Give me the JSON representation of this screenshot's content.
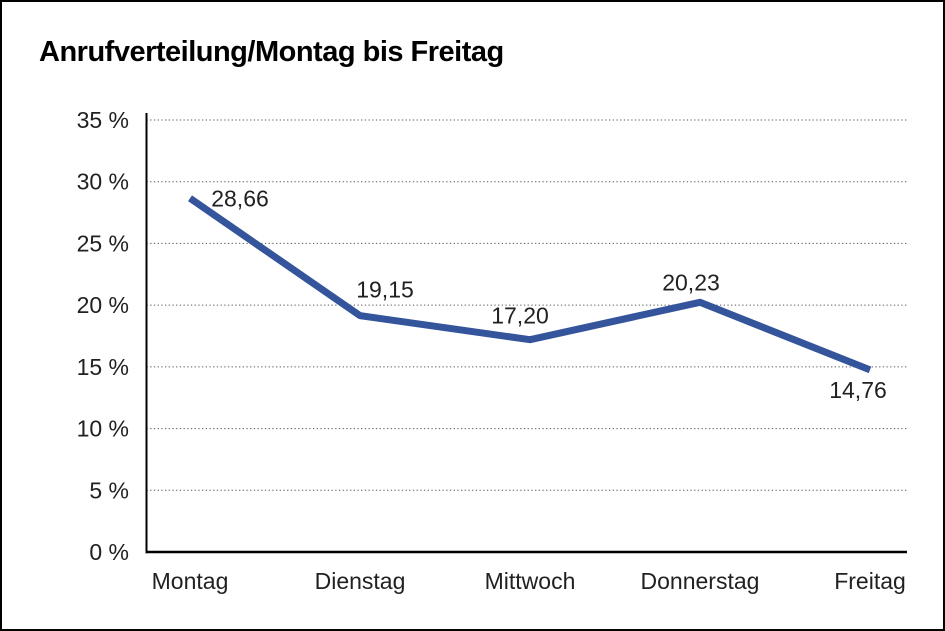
{
  "page": {
    "background": "#ffffff",
    "border_color": "#000000"
  },
  "chart_data": {
    "type": "line",
    "title": "Anrufverteilung/Montag bis Freitag",
    "categories": [
      "Montag",
      "Dienstag",
      "Mittwoch",
      "Donnerstag",
      "Freitag"
    ],
    "series": [
      {
        "name": "Anrufverteilung",
        "values": [
          28.66,
          19.15,
          17.2,
          20.23,
          14.76
        ],
        "value_labels": [
          "28,66",
          "19,15",
          "17,20",
          "20,23",
          "14,76"
        ]
      }
    ],
    "xlabel": "",
    "ylabel": "",
    "ylim": [
      0,
      35
    ],
    "y_ticks": [
      0,
      5,
      10,
      15,
      20,
      25,
      30,
      35
    ],
    "y_tick_labels": [
      "0 %",
      "5 %",
      "10 %",
      "15 %",
      "20 %",
      "25 %",
      "30 %",
      "35 %"
    ],
    "grid": "horizontal-dotted",
    "legend": "none",
    "colors": {
      "line": "#34549B",
      "axis": "#000000",
      "gridline": "#5a5a5a",
      "label_text": "#212121",
      "title_text": "#000000"
    }
  }
}
